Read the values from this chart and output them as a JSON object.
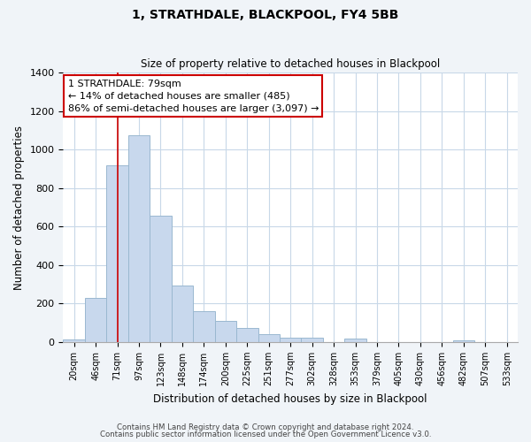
{
  "title": "1, STRATHDALE, BLACKPOOL, FY4 5BB",
  "subtitle": "Size of property relative to detached houses in Blackpool",
  "xlabel": "Distribution of detached houses by size in Blackpool",
  "ylabel": "Number of detached properties",
  "bar_labels": [
    "20sqm",
    "46sqm",
    "71sqm",
    "97sqm",
    "123sqm",
    "148sqm",
    "174sqm",
    "200sqm",
    "225sqm",
    "251sqm",
    "277sqm",
    "302sqm",
    "328sqm",
    "353sqm",
    "379sqm",
    "405sqm",
    "430sqm",
    "456sqm",
    "482sqm",
    "507sqm",
    "533sqm"
  ],
  "bar_values": [
    15,
    228,
    920,
    1075,
    655,
    293,
    160,
    110,
    72,
    42,
    25,
    22,
    0,
    18,
    0,
    0,
    0,
    0,
    10,
    0,
    0
  ],
  "bar_color": "#c8d8ed",
  "bar_edge_color": "#9ab8d0",
  "vline_x": 2,
  "vline_color": "#cc0000",
  "ylim": [
    0,
    1400
  ],
  "yticks": [
    0,
    200,
    400,
    600,
    800,
    1000,
    1200,
    1400
  ],
  "annotation_title": "1 STRATHDALE: 79sqm",
  "annotation_line1": "← 14% of detached houses are smaller (485)",
  "annotation_line2": "86% of semi-detached houses are larger (3,097) →",
  "annotation_box_color": "#ffffff",
  "annotation_box_edge": "#cc0000",
  "footer_line1": "Contains HM Land Registry data © Crown copyright and database right 2024.",
  "footer_line2": "Contains public sector information licensed under the Open Government Licence v3.0.",
  "background_color": "#f0f4f8",
  "plot_bg_color": "#ffffff",
  "grid_color": "#c8d8e8"
}
